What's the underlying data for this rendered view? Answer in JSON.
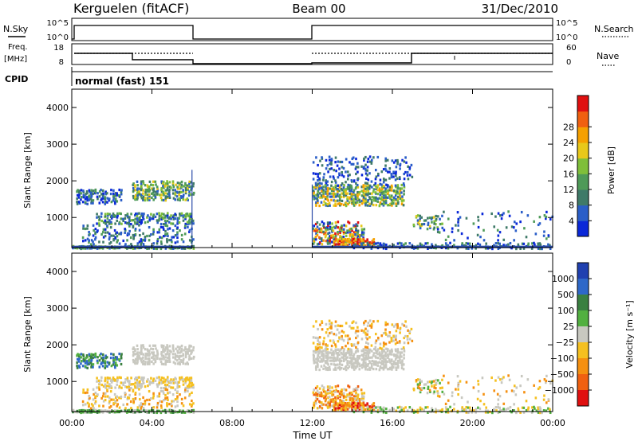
{
  "header": {
    "station": "Kerguelen (fitACF)",
    "beam": "Beam 00",
    "date": "31/Dec/2010"
  },
  "info_panels": {
    "nsky_label": "N.Sky",
    "nsky_ticks": [
      "10^5",
      "10^0"
    ],
    "nsearch_label": "N.Search",
    "nsearch_ticks": [
      "10^5",
      "10^0"
    ],
    "freq_label_1": "Freq.",
    "freq_label_2": "[MHz]",
    "freq_ticks": [
      "18",
      "8"
    ],
    "nave_label": "Nave",
    "nave_ticks": [
      "60",
      "0"
    ],
    "cpid_label": "CPID",
    "cpid_value": "normal (fast) 151"
  },
  "chart_data": [
    {
      "type": "heatmap",
      "name": "power",
      "ylabel": "Slant Range [km]",
      "yticks": [
        "1000",
        "2000",
        "3000",
        "4000"
      ],
      "ylim": [
        180,
        4500
      ],
      "xlim": [
        0,
        24
      ],
      "colorbar_label": "Power [dB]",
      "colorbar_ticks": [
        "4",
        "8",
        "12",
        "16",
        "20",
        "24",
        "28"
      ],
      "colors": [
        "#0a28d8",
        "#2a5ec8",
        "#3f7a68",
        "#4e9a58",
        "#7fbf3a",
        "#e8c81a",
        "#f5a000",
        "#f06010",
        "#e01010"
      ],
      "data_windows_hours": [
        [
          0,
          6
        ],
        [
          12,
          24
        ]
      ]
    },
    {
      "type": "heatmap",
      "name": "velocity",
      "ylabel": "Slant Range [km]",
      "yticks": [
        "1000",
        "2000",
        "3000",
        "4000"
      ],
      "ylim": [
        180,
        4500
      ],
      "xlim": [
        0,
        24
      ],
      "xlabel": "Time UT",
      "xticks": [
        "00:00",
        "04:00",
        "08:00",
        "12:00",
        "16:00",
        "20:00",
        "00:00"
      ],
      "colorbar_label": "Velocity [m s⁻¹]",
      "colorbar_ticks": [
        "1000",
        "500",
        "100",
        "25",
        "−25",
        "−100",
        "−500",
        "−1000"
      ],
      "colors": [
        "#2040b0",
        "#2e68c8",
        "#3a8040",
        "#52b040",
        "#c8c8c0",
        "#f5c020",
        "#f59010",
        "#f06010",
        "#e01010"
      ],
      "data_windows_hours": [
        [
          0,
          6
        ],
        [
          12,
          24
        ]
      ]
    }
  ]
}
